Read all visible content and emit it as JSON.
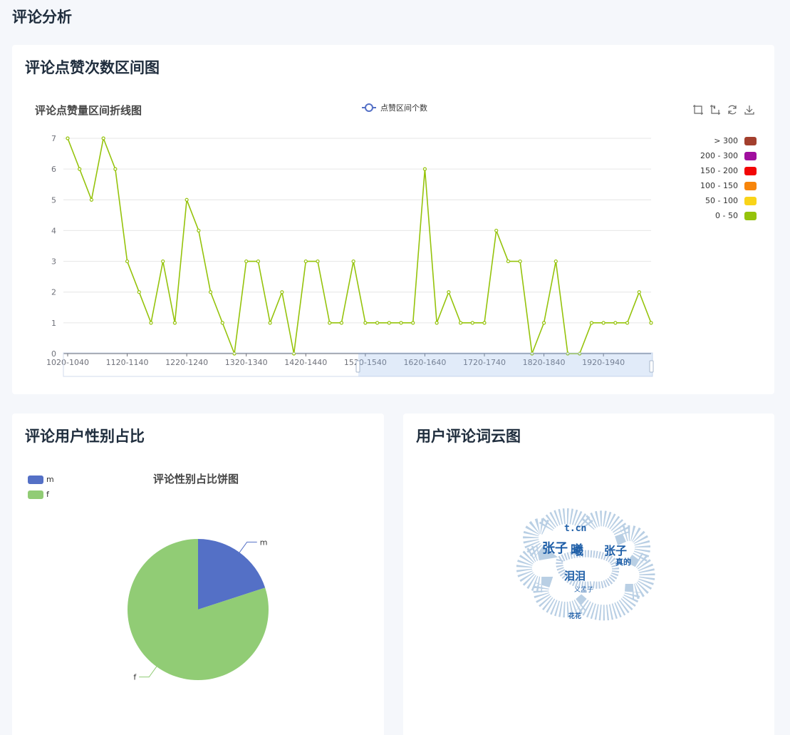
{
  "page": {
    "title": "评论分析"
  },
  "line_card": {
    "title": "评论点赞次数区间图",
    "chart_title": "评论点赞量区间折线图",
    "legend_label": "点赞区间个数"
  },
  "visual_map": [
    {
      "label": "> 300",
      "color": "#a33f2d"
    },
    {
      "label": "200 - 300",
      "color": "#a00f9e"
    },
    {
      "label": "150 - 200",
      "color": "#f20606"
    },
    {
      "label": "100 - 150",
      "color": "#f7850b"
    },
    {
      "label": "50 - 100",
      "color": "#f9d419"
    },
    {
      "label": "0 - 50",
      "color": "#95c30b"
    }
  ],
  "toolbox": [
    "zoom-icon",
    "zoom-reset-icon",
    "restore-icon",
    "download-icon"
  ],
  "pie_card": {
    "title": "评论用户性别占比",
    "chart_title": "评论性别占比饼图"
  },
  "cloud_card": {
    "title": "用户评论词云图"
  },
  "chart_data": [
    {
      "type": "line",
      "title": "评论点赞量区间折线图",
      "series": [
        {
          "name": "点赞区间个数",
          "color": "#95c30b",
          "values": [
            7,
            6,
            5,
            7,
            6,
            3,
            2,
            1,
            3,
            1,
            5,
            4,
            2,
            1,
            0,
            3,
            3,
            1,
            2,
            0,
            3,
            3,
            1,
            1,
            3,
            1,
            1,
            1,
            1,
            1,
            6,
            1,
            2,
            1,
            1,
            1,
            4,
            3,
            3,
            0,
            1,
            3,
            0,
            0,
            1,
            1,
            1,
            1,
            2,
            1
          ]
        }
      ],
      "x_tick_labels": [
        "1020-1040",
        "1120-1140",
        "1220-1240",
        "1320-1340",
        "1420-1440",
        "1520-1540",
        "1620-1640",
        "1720-1740",
        "1820-1840",
        "1920-1940"
      ],
      "x_tick_indices": [
        0,
        5,
        10,
        15,
        20,
        25,
        30,
        35,
        40,
        45
      ],
      "ylim": [
        0,
        7
      ],
      "y_ticks": [
        0,
        1,
        2,
        3,
        4,
        5,
        6,
        7
      ],
      "grid": true,
      "legend": "top-center"
    },
    {
      "type": "pie",
      "title": "评论性别占比饼图",
      "slices": [
        {
          "name": "m",
          "value": 20,
          "color": "#5470c6"
        },
        {
          "name": "f",
          "value": 80,
          "color": "#91cc75"
        }
      ],
      "legend": "top-left"
    }
  ],
  "word_cloud": {
    "words": [
      {
        "text": "张子",
        "size": 18,
        "color": "#1f5fa8"
      },
      {
        "text": "曦",
        "size": 18,
        "color": "#1f5fa8"
      },
      {
        "text": "张子",
        "size": 16,
        "color": "#1f5fa8"
      },
      {
        "text": "t.cn",
        "size": 13,
        "color": "#1f5fa8"
      },
      {
        "text": "泪泪",
        "size": 15,
        "color": "#1f5fa8"
      },
      {
        "text": "真的",
        "size": 11,
        "color": "#1f5fa8"
      },
      {
        "text": "义孟子",
        "size": 9,
        "color": "#1f5fa8"
      },
      {
        "text": "花花",
        "size": 9,
        "color": "#1f5fa8"
      }
    ]
  }
}
